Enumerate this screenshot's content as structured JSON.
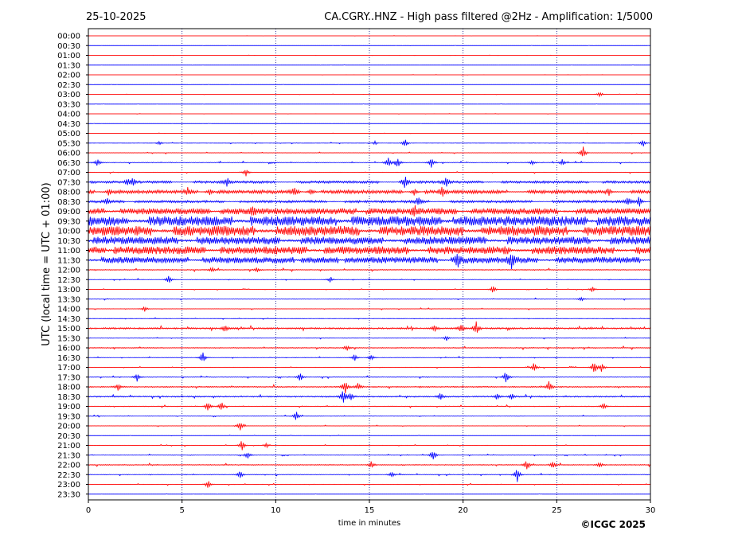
{
  "header": {
    "date": "25-10-2025",
    "title": "CA.CGRY..HNZ - High pass filtered @2Hz - Amplification: 1/5000"
  },
  "footer": {
    "copyright": "©ICGC 2025"
  },
  "chart_data": {
    "type": "line",
    "title": "CA.CGRY..HNZ - High pass filtered @2Hz - Amplification: 1/5000",
    "xlabel": "time in minutes",
    "ylabel": "UTC (local time = UTC + 01:00)",
    "xlim": [
      0,
      30
    ],
    "xticks": [
      0,
      5,
      10,
      15,
      20,
      25,
      30
    ],
    "grid_x": true,
    "row_colors": [
      "#ff0000",
      "#0000ff"
    ],
    "row_labels": [
      "00:00",
      "00:30",
      "01:00",
      "01:30",
      "02:00",
      "02:30",
      "03:00",
      "03:30",
      "04:00",
      "04:30",
      "05:00",
      "05:30",
      "06:00",
      "06:30",
      "07:00",
      "07:30",
      "08:00",
      "08:30",
      "09:00",
      "09:30",
      "10:00",
      "10:30",
      "11:00",
      "11:30",
      "12:00",
      "12:30",
      "13:00",
      "13:30",
      "14:00",
      "14:30",
      "15:00",
      "15:30",
      "16:00",
      "16:30",
      "17:00",
      "17:30",
      "18:00",
      "18:30",
      "19:00",
      "19:30",
      "20:00",
      "20:30",
      "21:00",
      "21:30",
      "22:00",
      "22:30",
      "23:00",
      "23:30"
    ],
    "row_activity": [
      0.05,
      0.05,
      0.05,
      0.05,
      0.05,
      0.05,
      0.08,
      0.05,
      0.05,
      0.05,
      0.08,
      0.15,
      0.2,
      0.25,
      0.2,
      0.5,
      0.6,
      0.5,
      0.8,
      1.0,
      1.0,
      0.9,
      0.9,
      0.8,
      0.3,
      0.2,
      0.15,
      0.2,
      0.2,
      0.15,
      0.4,
      0.2,
      0.3,
      0.2,
      0.2,
      0.25,
      0.35,
      0.35,
      0.25,
      0.2,
      0.2,
      0.1,
      0.2,
      0.2,
      0.3,
      0.25,
      0.2,
      0.05
    ],
    "events": [
      {
        "row": 6,
        "minute": 27.3,
        "amp": 0.4
      },
      {
        "row": 11,
        "minute": 3.8,
        "amp": 0.3
      },
      {
        "row": 11,
        "minute": 15.3,
        "amp": 0.25
      },
      {
        "row": 11,
        "minute": 16.9,
        "amp": 0.5
      },
      {
        "row": 11,
        "minute": 29.6,
        "amp": 0.5
      },
      {
        "row": 12,
        "minute": 26.4,
        "amp": 0.9
      },
      {
        "row": 13,
        "minute": 0.5,
        "amp": 0.5
      },
      {
        "row": 13,
        "minute": 16.0,
        "amp": 0.6
      },
      {
        "row": 13,
        "minute": 16.5,
        "amp": 0.6
      },
      {
        "row": 13,
        "minute": 18.3,
        "amp": 0.6
      },
      {
        "row": 13,
        "minute": 23.7,
        "amp": 0.3
      },
      {
        "row": 13,
        "minute": 25.3,
        "amp": 0.45
      },
      {
        "row": 14,
        "minute": 8.4,
        "amp": 0.55
      },
      {
        "row": 15,
        "minute": 2.1,
        "amp": 0.4
      },
      {
        "row": 15,
        "minute": 2.4,
        "amp": 0.5
      },
      {
        "row": 15,
        "minute": 7.4,
        "amp": 0.5
      },
      {
        "row": 15,
        "minute": 16.9,
        "amp": 0.8
      },
      {
        "row": 15,
        "minute": 19.1,
        "amp": 0.6
      },
      {
        "row": 16,
        "minute": 1.1,
        "amp": 0.6
      },
      {
        "row": 16,
        "minute": 5.3,
        "amp": 0.4
      },
      {
        "row": 16,
        "minute": 6.5,
        "amp": 0.5
      },
      {
        "row": 16,
        "minute": 11.0,
        "amp": 0.6
      },
      {
        "row": 16,
        "minute": 11.9,
        "amp": 0.5
      },
      {
        "row": 16,
        "minute": 17.4,
        "amp": 0.5
      },
      {
        "row": 16,
        "minute": 18.9,
        "amp": 0.6
      },
      {
        "row": 16,
        "minute": 27.8,
        "amp": 0.4
      },
      {
        "row": 17,
        "minute": 1.0,
        "amp": 0.4
      },
      {
        "row": 17,
        "minute": 17.6,
        "amp": 0.6
      },
      {
        "row": 17,
        "minute": 28.8,
        "amp": 0.5
      },
      {
        "row": 17,
        "minute": 29.4,
        "amp": 0.7
      },
      {
        "row": 18,
        "minute": 8.8,
        "amp": 0.5
      },
      {
        "row": 18,
        "minute": 17.4,
        "amp": 0.7
      },
      {
        "row": 23,
        "minute": 19.7,
        "amp": 1.0
      },
      {
        "row": 23,
        "minute": 22.6,
        "amp": 1.0
      },
      {
        "row": 24,
        "minute": 6.6,
        "amp": 0.4
      },
      {
        "row": 24,
        "minute": 9.0,
        "amp": 0.3
      },
      {
        "row": 25,
        "minute": 4.3,
        "amp": 0.6
      },
      {
        "row": 25,
        "minute": 12.9,
        "amp": 0.3
      },
      {
        "row": 26,
        "minute": 21.6,
        "amp": 0.5
      },
      {
        "row": 26,
        "minute": 26.9,
        "amp": 0.4
      },
      {
        "row": 27,
        "minute": 26.3,
        "amp": 0.3
      },
      {
        "row": 28,
        "minute": 3.0,
        "amp": 0.4
      },
      {
        "row": 30,
        "minute": 7.3,
        "amp": 0.5
      },
      {
        "row": 30,
        "minute": 18.5,
        "amp": 0.4
      },
      {
        "row": 30,
        "minute": 19.9,
        "amp": 0.6
      },
      {
        "row": 30,
        "minute": 20.7,
        "amp": 0.8
      },
      {
        "row": 31,
        "minute": 19.1,
        "amp": 0.3
      },
      {
        "row": 32,
        "minute": 13.8,
        "amp": 0.4
      },
      {
        "row": 33,
        "minute": 6.1,
        "amp": 0.8
      },
      {
        "row": 33,
        "minute": 14.2,
        "amp": 0.5
      },
      {
        "row": 33,
        "minute": 15.1,
        "amp": 0.4
      },
      {
        "row": 34,
        "minute": 23.8,
        "amp": 0.7
      },
      {
        "row": 34,
        "minute": 27.0,
        "amp": 0.9
      },
      {
        "row": 34,
        "minute": 27.4,
        "amp": 0.6
      },
      {
        "row": 35,
        "minute": 2.6,
        "amp": 0.5
      },
      {
        "row": 35,
        "minute": 11.3,
        "amp": 0.6
      },
      {
        "row": 35,
        "minute": 22.3,
        "amp": 0.8
      },
      {
        "row": 36,
        "minute": 1.6,
        "amp": 0.5
      },
      {
        "row": 36,
        "minute": 13.7,
        "amp": 0.9
      },
      {
        "row": 36,
        "minute": 14.4,
        "amp": 0.5
      },
      {
        "row": 36,
        "minute": 24.6,
        "amp": 0.8
      },
      {
        "row": 37,
        "minute": 13.6,
        "amp": 1.0
      },
      {
        "row": 37,
        "minute": 14.0,
        "amp": 0.5
      },
      {
        "row": 37,
        "minute": 18.8,
        "amp": 0.5
      },
      {
        "row": 37,
        "minute": 21.8,
        "amp": 0.4
      },
      {
        "row": 37,
        "minute": 22.6,
        "amp": 0.4
      },
      {
        "row": 38,
        "minute": 6.4,
        "amp": 0.7
      },
      {
        "row": 38,
        "minute": 7.1,
        "amp": 0.6
      },
      {
        "row": 38,
        "minute": 27.5,
        "amp": 0.5
      },
      {
        "row": 39,
        "minute": 11.1,
        "amp": 0.6
      },
      {
        "row": 40,
        "minute": 8.1,
        "amp": 0.7
      },
      {
        "row": 42,
        "minute": 8.2,
        "amp": 0.7
      },
      {
        "row": 42,
        "minute": 9.5,
        "amp": 0.3
      },
      {
        "row": 43,
        "minute": 8.5,
        "amp": 0.5
      },
      {
        "row": 43,
        "minute": 18.4,
        "amp": 0.8
      },
      {
        "row": 44,
        "minute": 15.1,
        "amp": 0.5
      },
      {
        "row": 44,
        "minute": 23.4,
        "amp": 0.6
      },
      {
        "row": 44,
        "minute": 24.8,
        "amp": 0.5
      },
      {
        "row": 44,
        "minute": 27.3,
        "amp": 0.4
      },
      {
        "row": 45,
        "minute": 8.1,
        "amp": 0.5
      },
      {
        "row": 45,
        "minute": 16.2,
        "amp": 0.4
      },
      {
        "row": 45,
        "minute": 22.9,
        "amp": 1.0
      },
      {
        "row": 46,
        "minute": 6.4,
        "amp": 0.5
      }
    ]
  }
}
